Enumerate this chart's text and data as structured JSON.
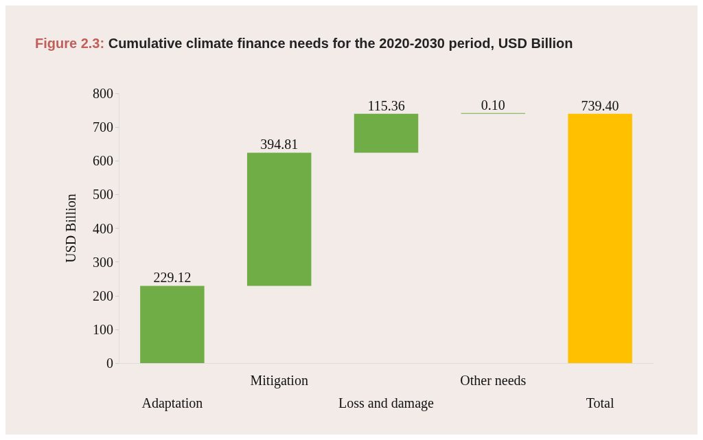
{
  "chart_data": {
    "type": "bar",
    "title": "Figure 2.3: Cumulative climate finance needs for the 2020-2030 period, USD Billion",
    "ylabel": "USD Billion",
    "categories": [
      "Adaptation",
      "Mitigation",
      "Loss and damage",
      "Other needs",
      "Total"
    ],
    "base": [
      0,
      229.12,
      623.93,
      739.29,
      0
    ],
    "values": [
      229.12,
      394.81,
      115.36,
      0.1,
      739.4
    ],
    "colors": [
      "#70ad47",
      "#70ad47",
      "#70ad47",
      "#70ad47",
      "#ffc000"
    ],
    "value_labels": [
      "229.12",
      "394.81",
      "115.36",
      "0.10",
      "739.40"
    ],
    "ylim": [
      0,
      800
    ],
    "yticks": [
      0,
      100,
      200,
      300,
      400,
      500,
      600,
      700,
      800
    ],
    "grid": false
  }
}
